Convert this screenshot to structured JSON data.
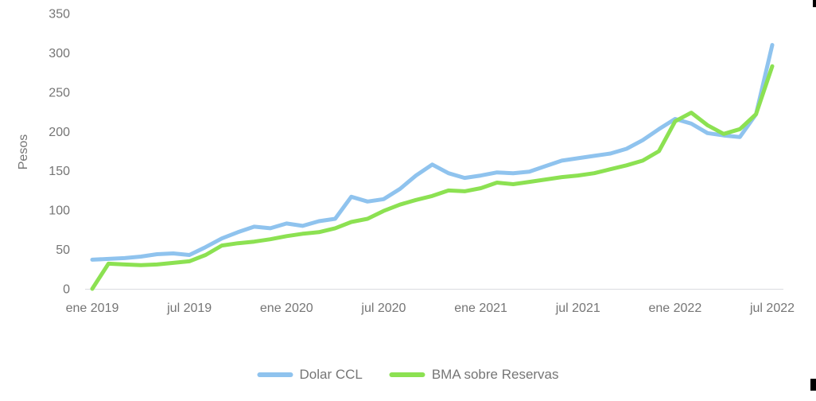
{
  "chart_data": {
    "type": "line",
    "title": "",
    "xlabel": "",
    "ylabel": "Pesos",
    "ylim": [
      0,
      350
    ],
    "y_ticks": [
      0,
      50,
      100,
      150,
      200,
      250,
      300,
      350
    ],
    "x_tick_labels": [
      "ene 2019",
      "jul 2019",
      "ene 2020",
      "jul 2020",
      "ene 2021",
      "jul 2021",
      "ene 2022",
      "jul 2022"
    ],
    "x_tick_indices": [
      0,
      6,
      12,
      18,
      24,
      30,
      36,
      42
    ],
    "grid": false,
    "legend_position": "bottom-center",
    "x": [
      "ene 2019",
      "feb 2019",
      "mar 2019",
      "abr 2019",
      "may 2019",
      "jun 2019",
      "jul 2019",
      "ago 2019",
      "sep 2019",
      "oct 2019",
      "nov 2019",
      "dic 2019",
      "ene 2020",
      "feb 2020",
      "mar 2020",
      "abr 2020",
      "may 2020",
      "jun 2020",
      "jul 2020",
      "ago 2020",
      "sep 2020",
      "oct 2020",
      "nov 2020",
      "dic 2020",
      "ene 2021",
      "feb 2021",
      "mar 2021",
      "abr 2021",
      "may 2021",
      "jun 2021",
      "jul 2021",
      "ago 2021",
      "sep 2021",
      "oct 2021",
      "nov 2021",
      "dic 2021",
      "ene 2022",
      "feb 2022",
      "mar 2022",
      "abr 2022",
      "may 2022",
      "jun 2022",
      "jul 2022"
    ],
    "series": [
      {
        "name": "Dolar CCL",
        "color": "#8FC3EE",
        "values": [
          37,
          38,
          39,
          41,
          44,
          45,
          43,
          53,
          64,
          72,
          79,
          77,
          83,
          80,
          86,
          89,
          117,
          111,
          114,
          127,
          144,
          158,
          147,
          141,
          144,
          148,
          147,
          149,
          156,
          163,
          166,
          169,
          172,
          178,
          189,
          203,
          216,
          210,
          198,
          195,
          193,
          222,
          310
        ]
      },
      {
        "name": "BMA sobre Reservas",
        "color": "#8CE152",
        "values": [
          0,
          32,
          31,
          30,
          31,
          33,
          35,
          43,
          55,
          58,
          60,
          63,
          67,
          70,
          72,
          77,
          85,
          89,
          99,
          107,
          113,
          118,
          125,
          124,
          128,
          135,
          133,
          136,
          139,
          142,
          144,
          147,
          152,
          157,
          163,
          175,
          213,
          224,
          208,
          197,
          203,
          222,
          283
        ]
      }
    ]
  },
  "axis": {
    "y_label": "Pesos"
  },
  "legend": {
    "items": [
      {
        "label": "Dolar CCL",
        "color": "#8FC3EE"
      },
      {
        "label": "BMA sobre Reservas",
        "color": "#8CE152"
      }
    ]
  },
  "colors": {
    "text": "#757575",
    "axis_line": "#DADCE0",
    "background": "#FFFFFF",
    "blue_series": "#8FC3EE",
    "green_series": "#8CE152"
  }
}
